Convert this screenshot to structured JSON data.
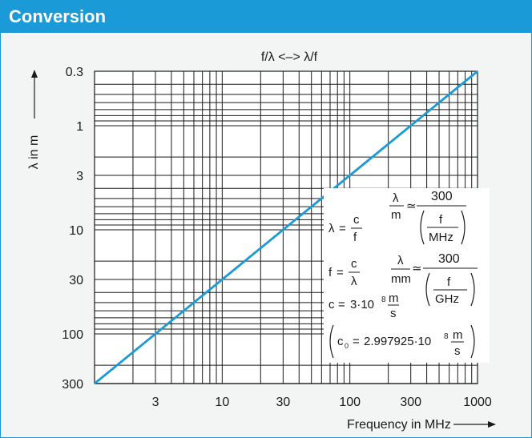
{
  "header": {
    "title": "Conversion"
  },
  "chart_data": {
    "type": "line",
    "title": "f/λ <–> λ/f",
    "xlabel": "Frequency in MHz",
    "ylabel": "λ in m",
    "x_scale": "log",
    "y_scale": "log",
    "y_inverted": true,
    "xlim": [
      1,
      1000
    ],
    "ylim": [
      0.3,
      300
    ],
    "x_ticks": [
      3,
      10,
      30,
      100,
      300,
      1000
    ],
    "x_tick_labels": [
      "3",
      "10",
      "30",
      "100",
      "300",
      "1000"
    ],
    "y_ticks": [
      0.3,
      1,
      3,
      10,
      30,
      100,
      300
    ],
    "y_tick_labels": [
      "0.3",
      "1",
      "3",
      "10",
      "30",
      "100",
      "300"
    ],
    "grid": true,
    "series": [
      {
        "x": [
          1,
          3,
          10,
          30,
          100,
          300,
          1000
        ],
        "y": [
          300,
          100,
          30,
          10,
          3,
          1,
          0.3
        ],
        "color": "#1a9ad6"
      }
    ],
    "formulas": {
      "lambda_eq": {
        "lhs": "λ",
        "num": "c",
        "den": "f"
      },
      "f_eq": {
        "lhs": "f",
        "num": "c",
        "den": "λ"
      },
      "c_eq": {
        "lhs": "c",
        "value": "3·10",
        "exp": "8",
        "unit_num": "m",
        "unit_den": "s"
      },
      "approx_m": {
        "num_a": "λ",
        "den_a": "m",
        "rel": "≃",
        "num_b": "300",
        "inner_num": "f",
        "inner_den": "MHz"
      },
      "approx_mm": {
        "num_a": "λ",
        "den_a": "mm",
        "rel": "≃",
        "num_b": "300",
        "inner_num": "f",
        "inner_den": "GHz"
      },
      "c0_eq": {
        "lhs": "c",
        "sub": "0",
        "value": "2.997925·10",
        "exp": "8",
        "unit_num": "m",
        "unit_den": "s"
      }
    }
  },
  "colors": {
    "accent": "#1a9ad6",
    "panel_bg": "#f3f4f4",
    "plot_bg": "#ffffff"
  }
}
